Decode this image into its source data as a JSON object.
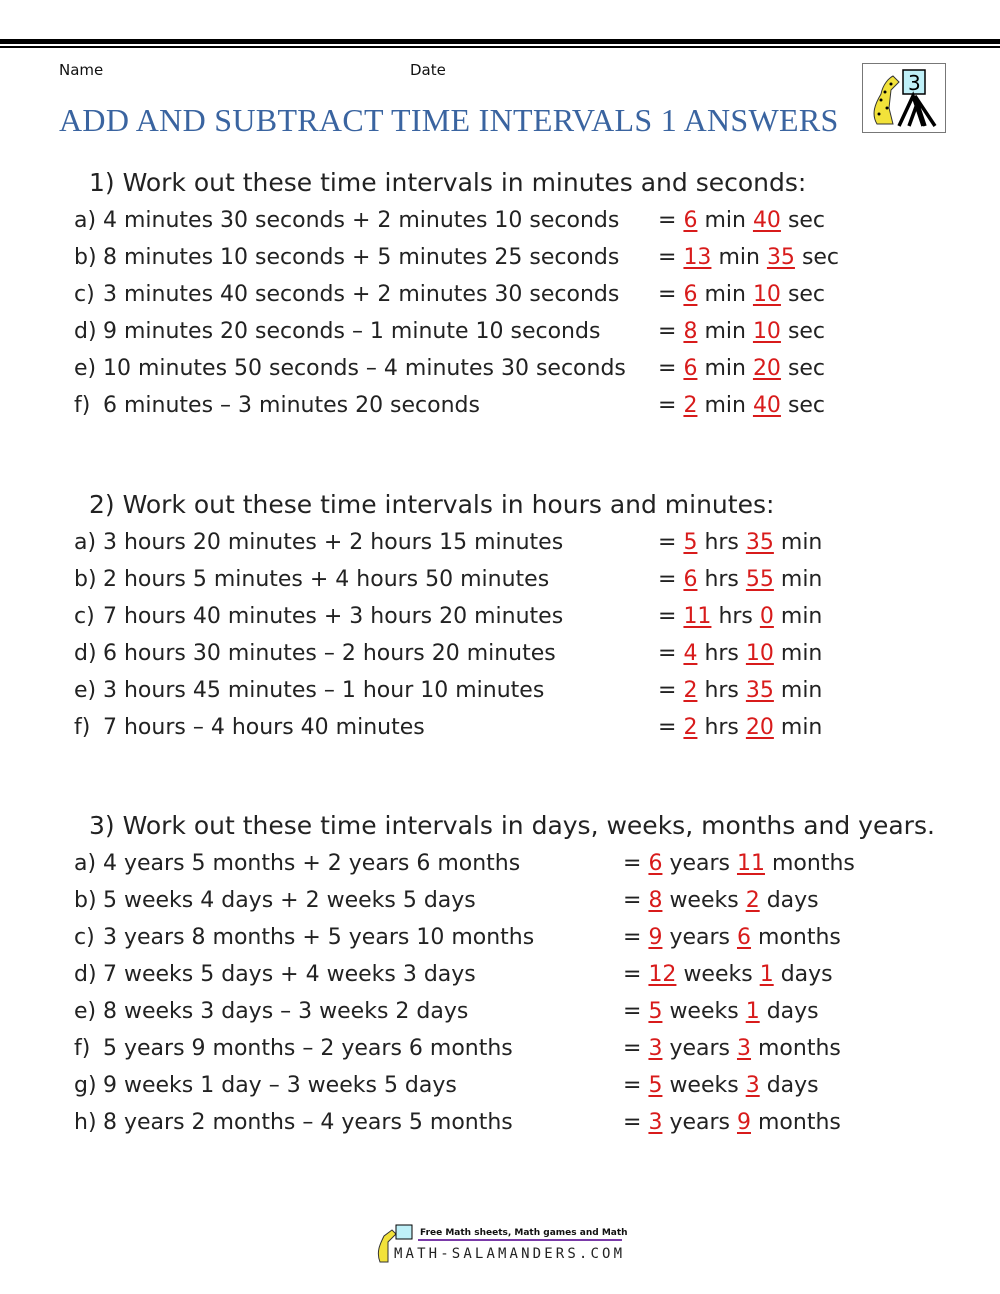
{
  "header": {
    "name_label": "Name",
    "date_label": "Date",
    "title": "ADD AND SUBTRACT TIME INTERVALS 1 ANSWERS",
    "logo_grade": "3"
  },
  "colors": {
    "title": "#3a64a0",
    "answer": "#d81b1b"
  },
  "sections": [
    {
      "heading": "1) Work out these time intervals in minutes and seconds:",
      "rows": [
        {
          "letter": "a)",
          "question": "4 minutes 30 seconds + 2 minutes 10 seconds",
          "eq": "=",
          "n1": "6",
          "u1": "min",
          "n2": "40",
          "u2": "sec"
        },
        {
          "letter": "b)",
          "question": "8 minutes 10 seconds + 5 minutes 25 seconds",
          "eq": "=",
          "n1": "13",
          "u1": "min",
          "n2": "35",
          "u2": "sec"
        },
        {
          "letter": "c)",
          "question": "3 minutes 40 seconds + 2 minutes 30 seconds",
          "eq": "=",
          "n1": "6",
          "u1": "min",
          "n2": "10",
          "u2": "sec"
        },
        {
          "letter": "d)",
          "question": "9 minutes 20 seconds – 1 minute 10 seconds",
          "eq": "=",
          "n1": "8",
          "u1": "min",
          "n2": "10",
          "u2": "sec"
        },
        {
          "letter": "e)",
          "question": "10 minutes 50 seconds – 4 minutes 30 seconds",
          "eq": "=",
          "n1": "6",
          "u1": "min",
          "n2": "20",
          "u2": "sec"
        },
        {
          "letter": "f)",
          "question": "6 minutes – 3 minutes 20 seconds",
          "eq": "=",
          "n1": "2",
          "u1": "min",
          "n2": "40",
          "u2": "sec"
        }
      ]
    },
    {
      "heading": "2) Work out these time intervals in hours and minutes:",
      "rows": [
        {
          "letter": "a)",
          "question": "3 hours 20 minutes + 2 hours 15 minutes",
          "eq": "=",
          "n1": "5",
          "u1": "hrs",
          "n2": "35",
          "u2": "min"
        },
        {
          "letter": "b)",
          "question": "2 hours 5 minutes + 4 hours 50 minutes",
          "eq": "=",
          "n1": "6",
          "u1": "hrs",
          "n2": "55",
          "u2": "min"
        },
        {
          "letter": "c)",
          "question": "7 hours 40 minutes + 3 hours 20 minutes",
          "eq": "=",
          "n1": "11",
          "u1": "hrs",
          "n2": "0",
          "u2": "min"
        },
        {
          "letter": "d)",
          "question": "6 hours 30 minutes – 2 hours 20 minutes",
          "eq": "=",
          "n1": "4",
          "u1": "hrs",
          "n2": "10",
          "u2": "min"
        },
        {
          "letter": "e)",
          "question": "3 hours 45 minutes – 1 hour 10 minutes",
          "eq": "=",
          "n1": "2",
          "u1": "hrs",
          "n2": "35",
          "u2": "min"
        },
        {
          "letter": "f)",
          "question": "7 hours – 4 hours 40 minutes",
          "eq": "=",
          "n1": "2",
          "u1": "hrs",
          "n2": "20",
          "u2": "min"
        }
      ]
    },
    {
      "heading": "3) Work out these time intervals in days, weeks, months and years.",
      "rows": [
        {
          "letter": "a)",
          "question": "4 years 5 months + 2 years 6 months",
          "eq": "=",
          "n1": "6",
          "u1": "years",
          "n2": "11",
          "u2": "months"
        },
        {
          "letter": "b)",
          "question": "5 weeks 4 days + 2 weeks 5 days",
          "eq": "=",
          "n1": "8",
          "u1": "weeks",
          "n2": "2",
          "u2": "days"
        },
        {
          "letter": "c)",
          "question": "3 years 8 months + 5 years 10 months",
          "eq": "=",
          "n1": "9",
          "u1": "years",
          "n2": "6",
          "u2": "months"
        },
        {
          "letter": "d)",
          "question": "7 weeks 5 days + 4 weeks 3 days",
          "eq": "=",
          "n1": "12",
          "u1": "weeks",
          "n2": "1",
          "u2": "days"
        },
        {
          "letter": "e)",
          "question": "8 weeks 3 days – 3 weeks 2 days",
          "eq": "=",
          "n1": "5",
          "u1": "weeks",
          "n2": "1",
          "u2": "days"
        },
        {
          "letter": "f)",
          "question": "5 years 9 months – 2 years 6 months",
          "eq": "=",
          "n1": "3",
          "u1": "years",
          "n2": "3",
          "u2": "months"
        },
        {
          "letter": "g)",
          "question": "9 weeks 1 day – 3 weeks 5 days",
          "eq": "=",
          "n1": "5",
          "u1": "weeks",
          "n2": "3",
          "u2": "days"
        },
        {
          "letter": "h)",
          "question": "8 years 2 months – 4 years 5 months",
          "eq": "=",
          "n1": "3",
          "u1": "years",
          "n2": "9",
          "u2": "months"
        }
      ]
    }
  ],
  "footer": {
    "tagline": "Free Math sheets, Math games and Math help",
    "site": "MATH-SALAMANDERS.COM"
  }
}
